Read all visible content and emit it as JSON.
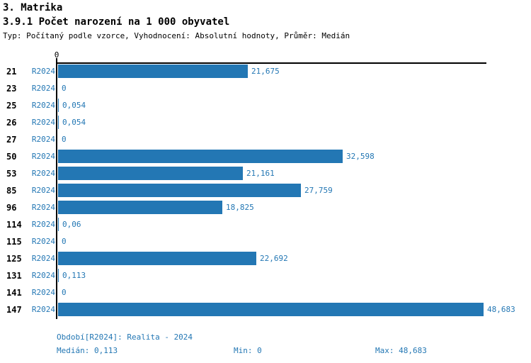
{
  "header": {
    "section_title": "3. Matrika",
    "chart_title": "3.9.1 Počet narození na 1 000 obyvatel",
    "meta_line": "Typ: Počítaný podle vzorce, Vyhodnocení: Absolutní hodnoty, Průměr: Medián"
  },
  "chart_data": {
    "type": "bar",
    "orientation": "horizontal",
    "title": "3.9.1 Počet narození na 1 000 obyvatel",
    "categories": [
      "21",
      "23",
      "25",
      "26",
      "27",
      "50",
      "53",
      "85",
      "96",
      "114",
      "115",
      "125",
      "131",
      "141",
      "147"
    ],
    "series": [
      {
        "name": "R2024",
        "values": [
          21.675,
          0,
          0.054,
          0.054,
          0,
          32.598,
          21.161,
          27.759,
          18.825,
          0.06,
          0,
          22.692,
          0.113,
          0,
          48.683
        ],
        "value_labels": [
          "21,675",
          "0",
          "0,054",
          "0,054",
          "0",
          "32,598",
          "21,161",
          "27,759",
          "18,825",
          "0,06",
          "0",
          "22,692",
          "0,113",
          "0",
          "48,683"
        ]
      }
    ],
    "xlim": [
      0,
      48.683
    ],
    "x_tick_labels": [
      "0"
    ],
    "grid": false,
    "legend": false
  },
  "colors": {
    "bar": "#2377b4",
    "blue_text": "#2377b4",
    "axis": "#000000",
    "title_text": "#000000",
    "background": "#ffffff"
  },
  "footer": {
    "period_text": "Období[R2024]: Realita - 2024",
    "median_text": "Medián: 0,113",
    "min_text": "Min: 0",
    "max_text": "Max: 48,683"
  }
}
